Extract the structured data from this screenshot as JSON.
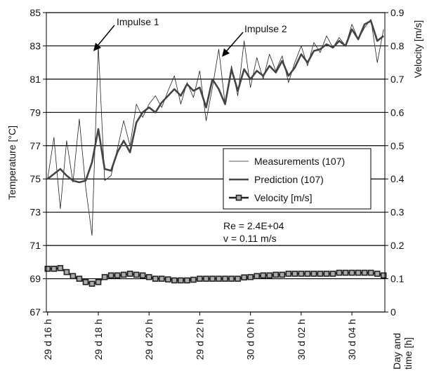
{
  "chart_data": {
    "type": "line",
    "y_label": "Temperature [°C]",
    "y2_label": "Velocity [m/s]",
    "x_label": [
      "Day and",
      "time [h]"
    ],
    "x": [
      16,
      16.25,
      16.5,
      16.75,
      17,
      17.25,
      17.5,
      17.75,
      18,
      18.25,
      18.5,
      18.75,
      19,
      19.25,
      19.5,
      19.75,
      20,
      20.25,
      20.5,
      20.75,
      21,
      21.25,
      21.5,
      21.75,
      22,
      22.25,
      22.5,
      22.75,
      23,
      23.25,
      23.5,
      23.75,
      24,
      24.25,
      24.5,
      24.75,
      25,
      25.25,
      25.5,
      25.75,
      26,
      26.25,
      26.5,
      26.75,
      27,
      27.25,
      27.5,
      27.75,
      28,
      28.25,
      28.5,
      28.75,
      29,
      29.25
    ],
    "xlim": [
      15.95,
      29.3
    ],
    "xticks": [
      {
        "value": 16,
        "label": "29 d 16 h"
      },
      {
        "value": 18,
        "label": "29 d 18 h"
      },
      {
        "value": 20,
        "label": "29 d 20 h"
      },
      {
        "value": 22,
        "label": "29 d 22 h"
      },
      {
        "value": 24,
        "label": "30 d 00 h"
      },
      {
        "value": 26,
        "label": "30 d 02 h"
      },
      {
        "value": 28,
        "label": "30 d 04 h"
      }
    ],
    "ylim": [
      67,
      85
    ],
    "yticks": [
      67,
      69,
      71,
      73,
      75,
      77,
      79,
      81,
      83,
      85
    ],
    "y2lim": [
      0,
      0.9
    ],
    "y2ticks": [
      0,
      0.1,
      0.2,
      0.3,
      0.4,
      0.5,
      0.6,
      0.7,
      0.8,
      0.9
    ],
    "grid": true,
    "series": [
      {
        "name": "Measurements (107)",
        "color": "#222222",
        "values": [
          75.0,
          77.5,
          73.2,
          77.3,
          74.8,
          78.6,
          74.5,
          71.6,
          83.0,
          74.9,
          75.2,
          76.8,
          78.5,
          77.0,
          79.5,
          78.7,
          79.5,
          80.0,
          79.3,
          80.3,
          81.2,
          79.5,
          80.8,
          79.9,
          81.5,
          78.5,
          80.5,
          82.8,
          79.5,
          81.8,
          80.0,
          83.3,
          80.5,
          82.3,
          81.0,
          82.5,
          81.5,
          82.4,
          80.8,
          82.0,
          83.0,
          81.8,
          83.2,
          82.6,
          83.6,
          82.9,
          83.5,
          83.0,
          84.3,
          83.4,
          84.1,
          84.6,
          82.0,
          84.0
        ]
      },
      {
        "name": "Prediction (107)",
        "color": "#444444",
        "values": [
          75.0,
          75.3,
          75.6,
          75.2,
          74.9,
          74.8,
          74.9,
          76.0,
          78.0,
          75.6,
          75.5,
          76.6,
          77.3,
          76.6,
          78.4,
          79.0,
          79.3,
          79.0,
          79.6,
          80.0,
          80.4,
          80.0,
          80.7,
          80.3,
          80.5,
          79.3,
          81.0,
          80.4,
          79.5,
          81.6,
          80.3,
          81.6,
          81.0,
          81.5,
          81.2,
          81.8,
          81.4,
          82.1,
          81.2,
          81.7,
          82.5,
          82.0,
          82.7,
          82.8,
          83.1,
          82.9,
          83.3,
          83.0,
          84.0,
          83.4,
          84.3,
          84.5,
          83.3,
          83.6
        ]
      },
      {
        "name": "Velocity [m/s]",
        "color": "#222222",
        "axis": "y2",
        "marker": "square",
        "values": [
          0.13,
          0.13,
          0.132,
          0.12,
          0.108,
          0.1,
          0.09,
          0.085,
          0.09,
          0.105,
          0.11,
          0.11,
          0.112,
          0.115,
          0.112,
          0.11,
          0.105,
          0.1,
          0.1,
          0.098,
          0.095,
          0.095,
          0.095,
          0.097,
          0.1,
          0.1,
          0.1,
          0.1,
          0.1,
          0.1,
          0.1,
          0.104,
          0.105,
          0.108,
          0.11,
          0.11,
          0.112,
          0.112,
          0.115,
          0.115,
          0.115,
          0.115,
          0.115,
          0.115,
          0.115,
          0.115,
          0.118,
          0.118,
          0.118,
          0.118,
          0.118,
          0.118,
          0.115,
          0.11
        ]
      }
    ],
    "annotations": [
      "Impulse 1",
      "Impulse 2",
      "Re = 2.4E+04",
      "v = 0.11 m/s"
    ]
  }
}
